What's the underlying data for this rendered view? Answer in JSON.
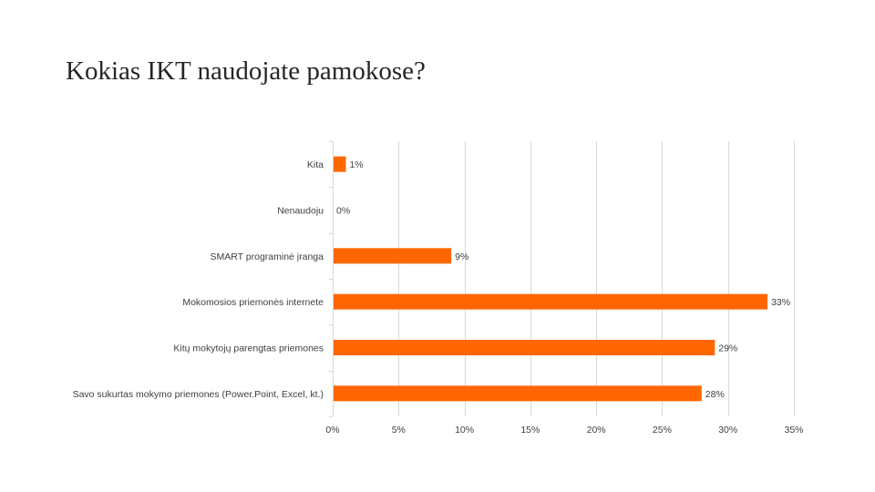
{
  "title": "Kokias IKT naudojate pamokose?",
  "colors": {
    "bar": "#FF6600",
    "grid": "#D9D9D9",
    "text": "#404040"
  },
  "chart_data": {
    "type": "bar",
    "orientation": "horizontal",
    "title": "",
    "categories": [
      "Kita",
      "Nenaudoju",
      "SMART programinė įranga",
      "Mokomosios priemonės internete",
      "Kitų mokytojų parengtas priemones",
      "Savo sukurtas mokymo priemones (Power.Point, Excel, kt.)"
    ],
    "values": [
      1,
      0,
      9,
      33,
      29,
      28
    ],
    "value_labels": [
      "1%",
      "0%",
      "9%",
      "33%",
      "29%",
      "28%"
    ],
    "xlim": [
      0,
      35
    ],
    "x_ticks": [
      0,
      5,
      10,
      15,
      20,
      25,
      30,
      35
    ],
    "x_tick_labels": [
      "0%",
      "5%",
      "10%",
      "15%",
      "20%",
      "25%",
      "30%",
      "35%"
    ],
    "xlabel": "",
    "ylabel": "",
    "grid": true,
    "legend": false
  }
}
